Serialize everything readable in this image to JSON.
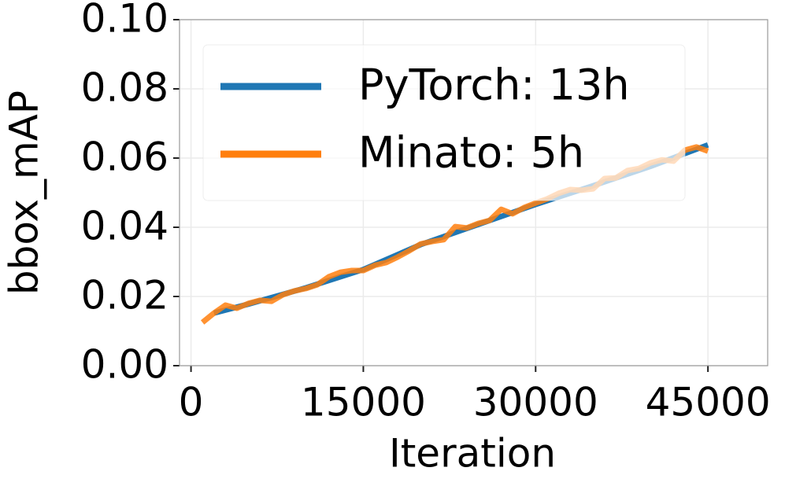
{
  "chart_data": {
    "type": "line",
    "xlabel": "Iteration",
    "ylabel": "bbox_mAP",
    "xlim": [
      -1000,
      50200
    ],
    "ylim": [
      0,
      0.1
    ],
    "xticks": [
      0,
      15000,
      30000,
      45000
    ],
    "yticks": [
      {
        "value": 0,
        "label": "0.00"
      },
      {
        "value": 0.02,
        "label": "0.02"
      },
      {
        "value": 0.04,
        "label": "0.04"
      },
      {
        "value": 0.06,
        "label": "0.06"
      },
      {
        "value": 0.08,
        "label": "0.08"
      },
      {
        "value": 0.1,
        "label": "0.10"
      }
    ],
    "grid": true,
    "legend": "upper left",
    "series": [
      {
        "name": "PyTorch: 13h",
        "color": "#1f77b4",
        "x": [
          2000,
          5000,
          10000,
          15000,
          20000,
          25000,
          30000,
          35000,
          40000,
          45000
        ],
        "values": [
          0.0152,
          0.0178,
          0.0225,
          0.0278,
          0.035,
          0.0408,
          0.0466,
          0.052,
          0.0576,
          0.0638
        ]
      },
      {
        "name": "Minato: 5h",
        "color": "#ff7f0e",
        "x": [
          1000,
          2000,
          3000,
          4000,
          5000,
          6000,
          7000,
          8000,
          9000,
          10000,
          11000,
          12000,
          13000,
          14000,
          15000,
          16000,
          17000,
          18000,
          19000,
          20000,
          21000,
          22000,
          23000,
          24000,
          25000,
          26000,
          27000,
          28000,
          29000,
          30000,
          31000,
          32000,
          33000,
          34000,
          35000,
          36000,
          37000,
          38000,
          39000,
          40000,
          41000,
          42000,
          43000,
          44000,
          45000
        ],
        "values": [
          0.0125,
          0.0152,
          0.0175,
          0.0166,
          0.018,
          0.0189,
          0.0186,
          0.0205,
          0.0216,
          0.0223,
          0.0234,
          0.0257,
          0.027,
          0.0275,
          0.0275,
          0.029,
          0.0298,
          0.0314,
          0.0332,
          0.0352,
          0.0359,
          0.0364,
          0.0402,
          0.0398,
          0.0411,
          0.042,
          0.0452,
          0.0439,
          0.0457,
          0.047,
          0.0482,
          0.0498,
          0.0509,
          0.0507,
          0.0511,
          0.0541,
          0.0543,
          0.0564,
          0.057,
          0.0586,
          0.0595,
          0.0591,
          0.0623,
          0.0632,
          0.062
        ]
      }
    ]
  }
}
